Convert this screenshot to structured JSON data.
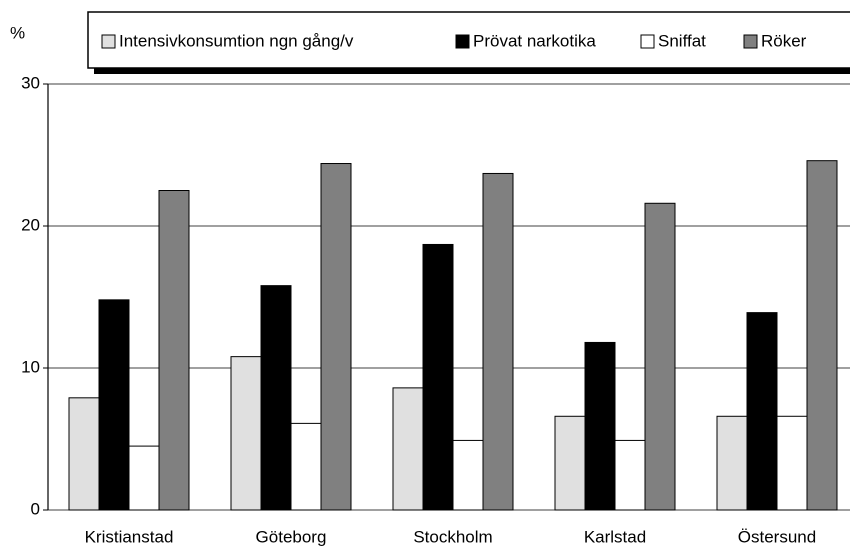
{
  "chart_data": {
    "type": "bar",
    "y_label": "%",
    "categories": [
      "Kristianstad",
      "Göteborg",
      "Stockholm",
      "Karlstad",
      "Östersund"
    ],
    "series": [
      {
        "name": "Intensivkonsumtion ngn gång/v",
        "color": "#e0e0e0",
        "values": [
          7.9,
          10.8,
          8.6,
          6.6,
          6.6
        ]
      },
      {
        "name": "Prövat narkotika",
        "color": "#000000",
        "values": [
          14.8,
          15.8,
          18.7,
          11.8,
          13.9
        ]
      },
      {
        "name": "Sniffat",
        "color": "#ffffff",
        "values": [
          4.5,
          6.1,
          4.9,
          4.9,
          6.6
        ]
      },
      {
        "name": "Röker",
        "color": "#808080",
        "values": [
          22.5,
          24.4,
          23.7,
          21.6,
          24.6
        ]
      }
    ],
    "ylim": [
      0,
      30
    ],
    "yticks": [
      0,
      10,
      20,
      30
    ],
    "grid": true
  }
}
